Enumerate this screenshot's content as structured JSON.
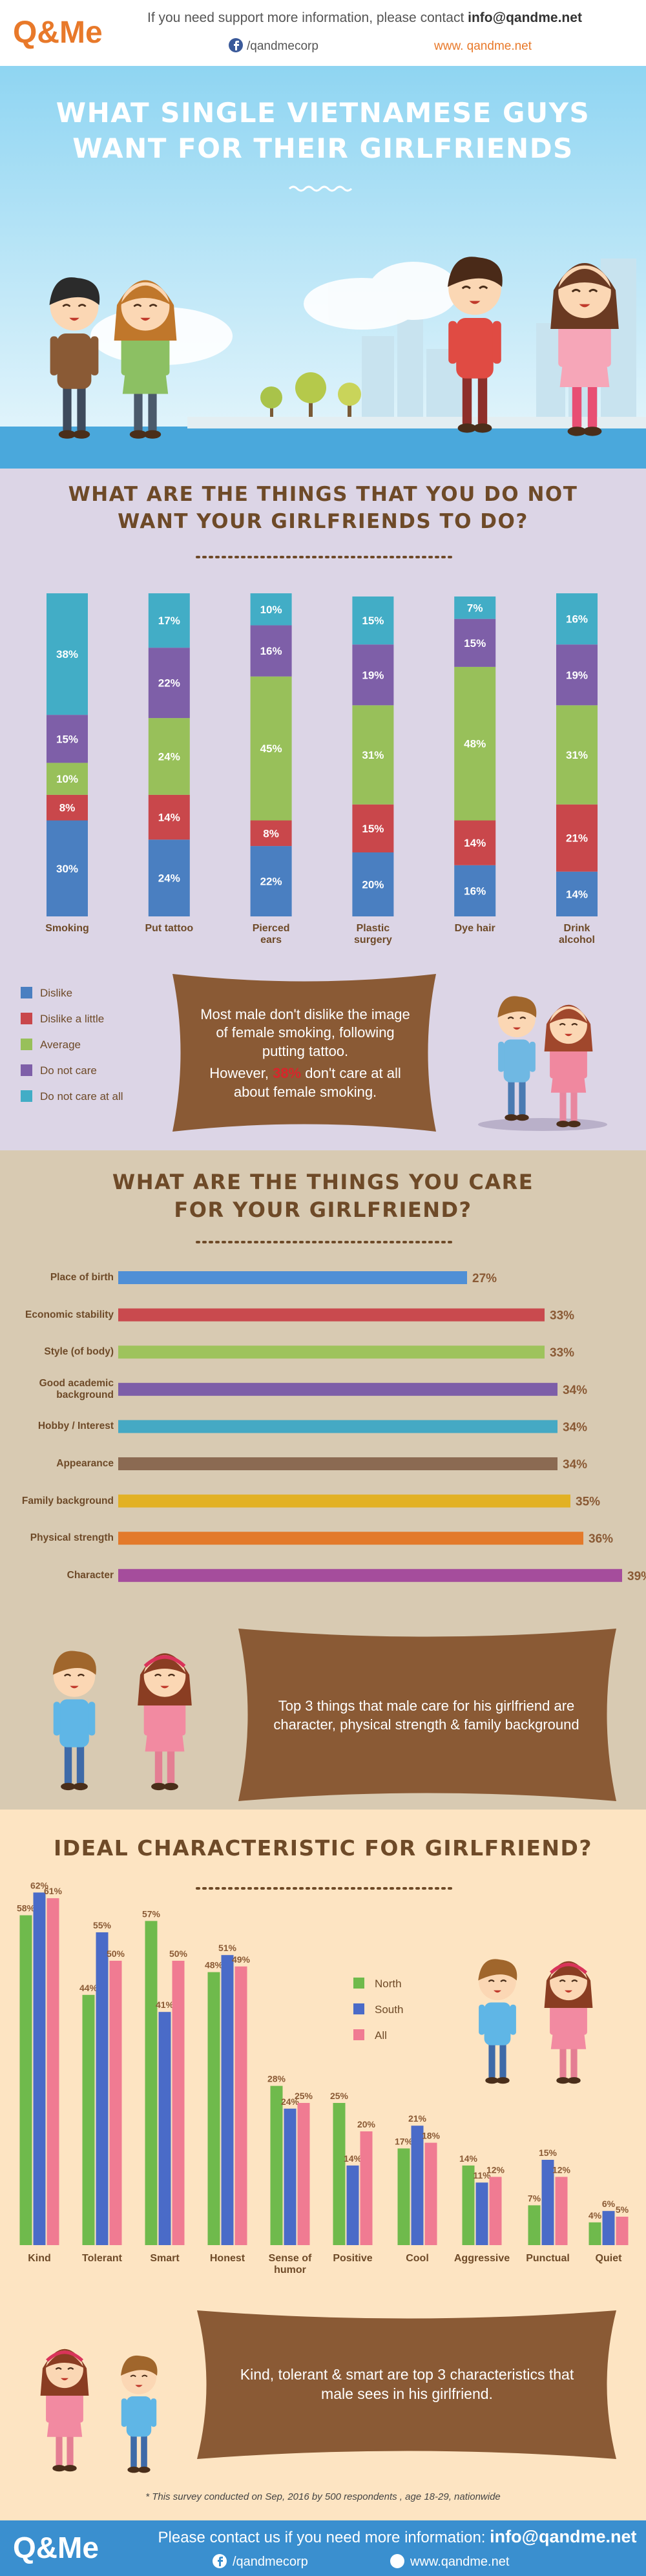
{
  "header": {
    "logo": "Q&Me",
    "contact_text": "If you need support more information, please contact",
    "email": "info@qandme.net",
    "facebook": "/qandmecorp",
    "website": "www. qandme.net"
  },
  "hero": {
    "title": "WHAT SINGLE VIETNAMESE GUYS WANT FOR THEIR GIRLFRIENDS"
  },
  "chart_data": [
    {
      "type": "stacked_bar",
      "title": "WHAT ARE THE THINGS THAT YOU DO NOT WANT YOUR GIRLFRIENDS TO DO?",
      "categories": [
        "Smoking",
        "Put tattoo",
        "Pierced ears",
        "Plastic surgery",
        "Dye hair",
        "Drink alcohol"
      ],
      "series": [
        {
          "name": "Dislike",
          "color": "#4a7fc1",
          "values": [
            30,
            24,
            22,
            20,
            16,
            14
          ],
          "value_labels": [
            "30%",
            "24%",
            "22%",
            "20%",
            "16%",
            "14%"
          ]
        },
        {
          "name": "Dislike a little",
          "color": "#c9474b",
          "values": [
            8,
            14,
            8,
            15,
            14,
            21
          ],
          "value_labels": [
            "8%",
            "14%",
            "8%",
            "15%",
            "14%",
            "21%"
          ]
        },
        {
          "name": "Average",
          "color": "#98c05a",
          "values": [
            10,
            24,
            45,
            31,
            48,
            31
          ],
          "value_labels": [
            "10%",
            "24%",
            "45%",
            "31%",
            "48%",
            "31%"
          ]
        },
        {
          "name": "Do not care",
          "color": "#7e5fa8",
          "values": [
            15,
            22,
            16,
            19,
            15,
            19
          ],
          "value_labels": [
            "15%",
            "22%",
            "16%",
            "19%",
            "15%",
            "19%"
          ]
        },
        {
          "name": "Do not care at all",
          "color": "#42adc6",
          "values": [
            38,
            17,
            10,
            15,
            7,
            16
          ],
          "value_labels": [
            "38%",
            "17%",
            "10%",
            "15%",
            "7%",
            "16%"
          ]
        }
      ],
      "legend": "bottom-left"
    },
    {
      "type": "horizontal_bar",
      "title": "WHAT ARE THE THINGS YOU CARE FOR YOUR GIRLFRIEND?",
      "categories": [
        "Place of birth",
        "Economic stability",
        "Style (of body)",
        "Good academic background",
        "Hobby / Interest",
        "Appearance",
        "Family background",
        "Physical strength",
        "Character"
      ],
      "values": [
        27,
        33,
        33,
        34,
        34,
        34,
        35,
        36,
        39
      ],
      "value_labels": [
        "27%",
        "33%",
        "33%",
        "34%",
        "34%",
        "34%",
        "35%",
        "36%",
        "39%"
      ],
      "colors": [
        "#4f8fd6",
        "#c94a4e",
        "#9ec35c",
        "#7d5ea8",
        "#45a9c4",
        "#8b6a52",
        "#e2b124",
        "#e37a2b",
        "#a54d9c"
      ]
    },
    {
      "type": "grouped_bar",
      "title": "IDEAL CHARACTERISTIC FOR GIRLFRIEND?",
      "categories": [
        "Kind",
        "Tolerant",
        "Smart",
        "Honest",
        "Sense of humor",
        "Positive",
        "Cool",
        "Aggressive",
        "Punctual",
        "Quiet"
      ],
      "series": [
        {
          "name": "North",
          "color": "#6fba4c",
          "values": [
            58,
            44,
            57,
            48,
            28,
            25,
            17,
            14,
            7,
            4
          ],
          "value_labels": [
            "58%",
            "44%",
            "57%",
            "48%",
            "28%",
            "25%",
            "17%",
            "14%",
            "7%",
            "4%"
          ]
        },
        {
          "name": "South",
          "color": "#4a6bc8",
          "values": [
            62,
            55,
            41,
            51,
            24,
            14,
            21,
            11,
            15,
            6
          ],
          "value_labels": [
            "62%",
            "55%",
            "41%",
            "51%",
            "24%",
            "14%",
            "21%",
            "11%",
            "15%",
            "6%"
          ]
        },
        {
          "name": "All",
          "color": "#f07b92",
          "values": [
            61,
            50,
            50,
            49,
            25,
            20,
            18,
            12,
            12,
            5
          ],
          "value_labels": [
            "61%",
            "50%",
            "50%",
            "49%",
            "25%",
            "20%",
            "18%",
            "12%",
            "12%",
            "5%"
          ]
        }
      ],
      "legend": "right"
    }
  ],
  "callouts": {
    "smoking": {
      "note_1": "Most male don't dislike the image of female smoking, following putting tattoo.",
      "note_2_start": "However,",
      "note_2_highlight": "38%",
      "note_2_end": "don't care at all about female smoking."
    },
    "care": "Top 3 things that male care for his girlfriend are character, physical strength & family background",
    "ideal": "Kind, tolerant & smart are top 3 characteristics that male sees in his girlfriend."
  },
  "footnote": "* This survey conducted on Sep, 2016  by 500 respondents , age 18-29, nationwide",
  "footer": {
    "logo": "Q&Me",
    "contact_text": "Please contact us if you need more information:",
    "email": "info@qandme.net",
    "facebook": "/qandmecorp",
    "website": "www.qandme.net"
  }
}
